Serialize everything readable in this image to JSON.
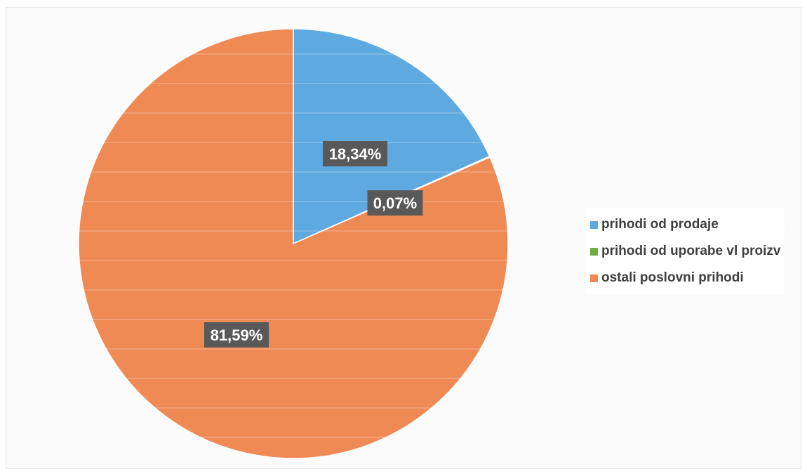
{
  "chart_data": {
    "type": "pie",
    "title": "",
    "slices": [
      {
        "name": "prihodi od prodaje",
        "value": 18.34,
        "label": "18,34%",
        "color": "#5ea9e0"
      },
      {
        "name": "prihodi od uporabe vl proizv",
        "value": 0.07,
        "label": "0,07%",
        "color": "#70ad47"
      },
      {
        "name": "ostali poslovni prihodi",
        "value": 81.59,
        "label": "81,59%",
        "color": "#ef8a55"
      }
    ],
    "legend_position": "right",
    "start_angle": "top",
    "direction": "clockwise"
  },
  "legend": {
    "items": [
      {
        "label": "prihodi od prodaje",
        "color": "#5ea9e0"
      },
      {
        "label": "prihodi od uporabe vl proizv",
        "color": "#70ad47"
      },
      {
        "label": "ostali poslovni prihodi",
        "color": "#ef8a55"
      }
    ]
  }
}
